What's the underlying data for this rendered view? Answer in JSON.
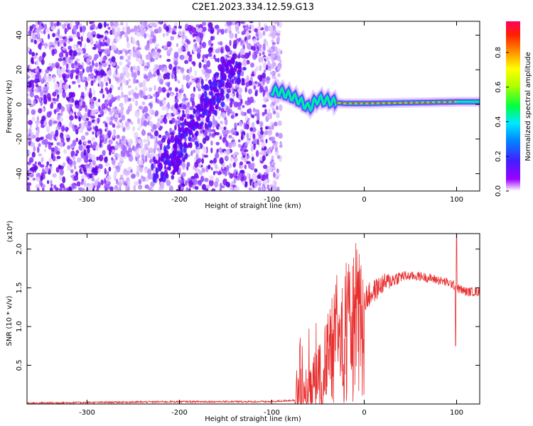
{
  "title": "C2E1.2023.334.12.59.G13",
  "chart_data": [
    {
      "type": "heatmap",
      "xlabel": "Height of straight line (km)",
      "ylabel": "Frequency (Hz)",
      "xlim": [
        -365,
        125
      ],
      "ylim": [
        -50,
        48
      ],
      "x_ticks": [
        -300,
        -200,
        -100,
        0,
        100
      ],
      "y_ticks": [
        -40,
        -20,
        0,
        20,
        40
      ],
      "colorbar": {
        "label": "Normalized spectral amplitude",
        "range": [
          0,
          0.98
        ],
        "ticks": [
          "0.0",
          "0.2",
          "0.4",
          "0.6",
          "0.8"
        ],
        "tick_values": [
          0,
          0.2,
          0.4,
          0.6,
          0.8
        ]
      },
      "features": {
        "noise_region_x": [
          -365,
          -90
        ],
        "diagonal_streak": {
          "x": [
            -220,
            -140
          ],
          "y": [
            -40,
            25
          ]
        },
        "signal_track": [
          [
            -100,
            8
          ],
          [
            -90,
            7
          ],
          [
            -80,
            5
          ],
          [
            -70,
            2
          ],
          [
            -60,
            -2
          ],
          [
            -50,
            3
          ],
          [
            -40,
            2
          ],
          [
            -30,
            1
          ],
          [
            -20,
            0.5
          ],
          [
            0,
            0.5
          ],
          [
            50,
            1
          ],
          [
            100,
            1.5
          ],
          [
            125,
            1.5
          ]
        ]
      },
      "colormap": [
        "#ffffff",
        "#9c00ff",
        "#4020ff",
        "#0088ff",
        "#00e8ff",
        "#00ff40",
        "#b0ff00",
        "#ffff00",
        "#ff9000",
        "#ff2000",
        "#ff0060"
      ]
    },
    {
      "type": "line",
      "xlabel": "Height of straight line (km)",
      "ylabel": "SNR (10 * v/v)",
      "y_multiplier": "(x10⁴)",
      "xlim": [
        -365,
        125
      ],
      "ylim": [
        0,
        2.2
      ],
      "x_ticks": [
        -300,
        -200,
        -100,
        0,
        100
      ],
      "y_ticks": [
        0.5,
        1.0,
        1.5,
        2.0
      ],
      "y_tick_labels": [
        "0.5",
        "1.0",
        "1.5",
        "2.0"
      ],
      "series_color": "#e83030",
      "x": [
        -365,
        -300,
        -200,
        -100,
        -75,
        -60,
        -45,
        -35,
        -30,
        -25,
        -20,
        -10,
        0,
        20,
        40,
        60,
        80,
        95,
        100,
        110,
        125
      ],
      "y": [
        0.01,
        0.02,
        0.03,
        0.03,
        0.05,
        0.15,
        0.4,
        0.8,
        1.1,
        0.95,
        1.0,
        1.2,
        1.35,
        1.55,
        1.65,
        1.65,
        1.6,
        1.55,
        1.5,
        1.45,
        1.45
      ]
    }
  ]
}
